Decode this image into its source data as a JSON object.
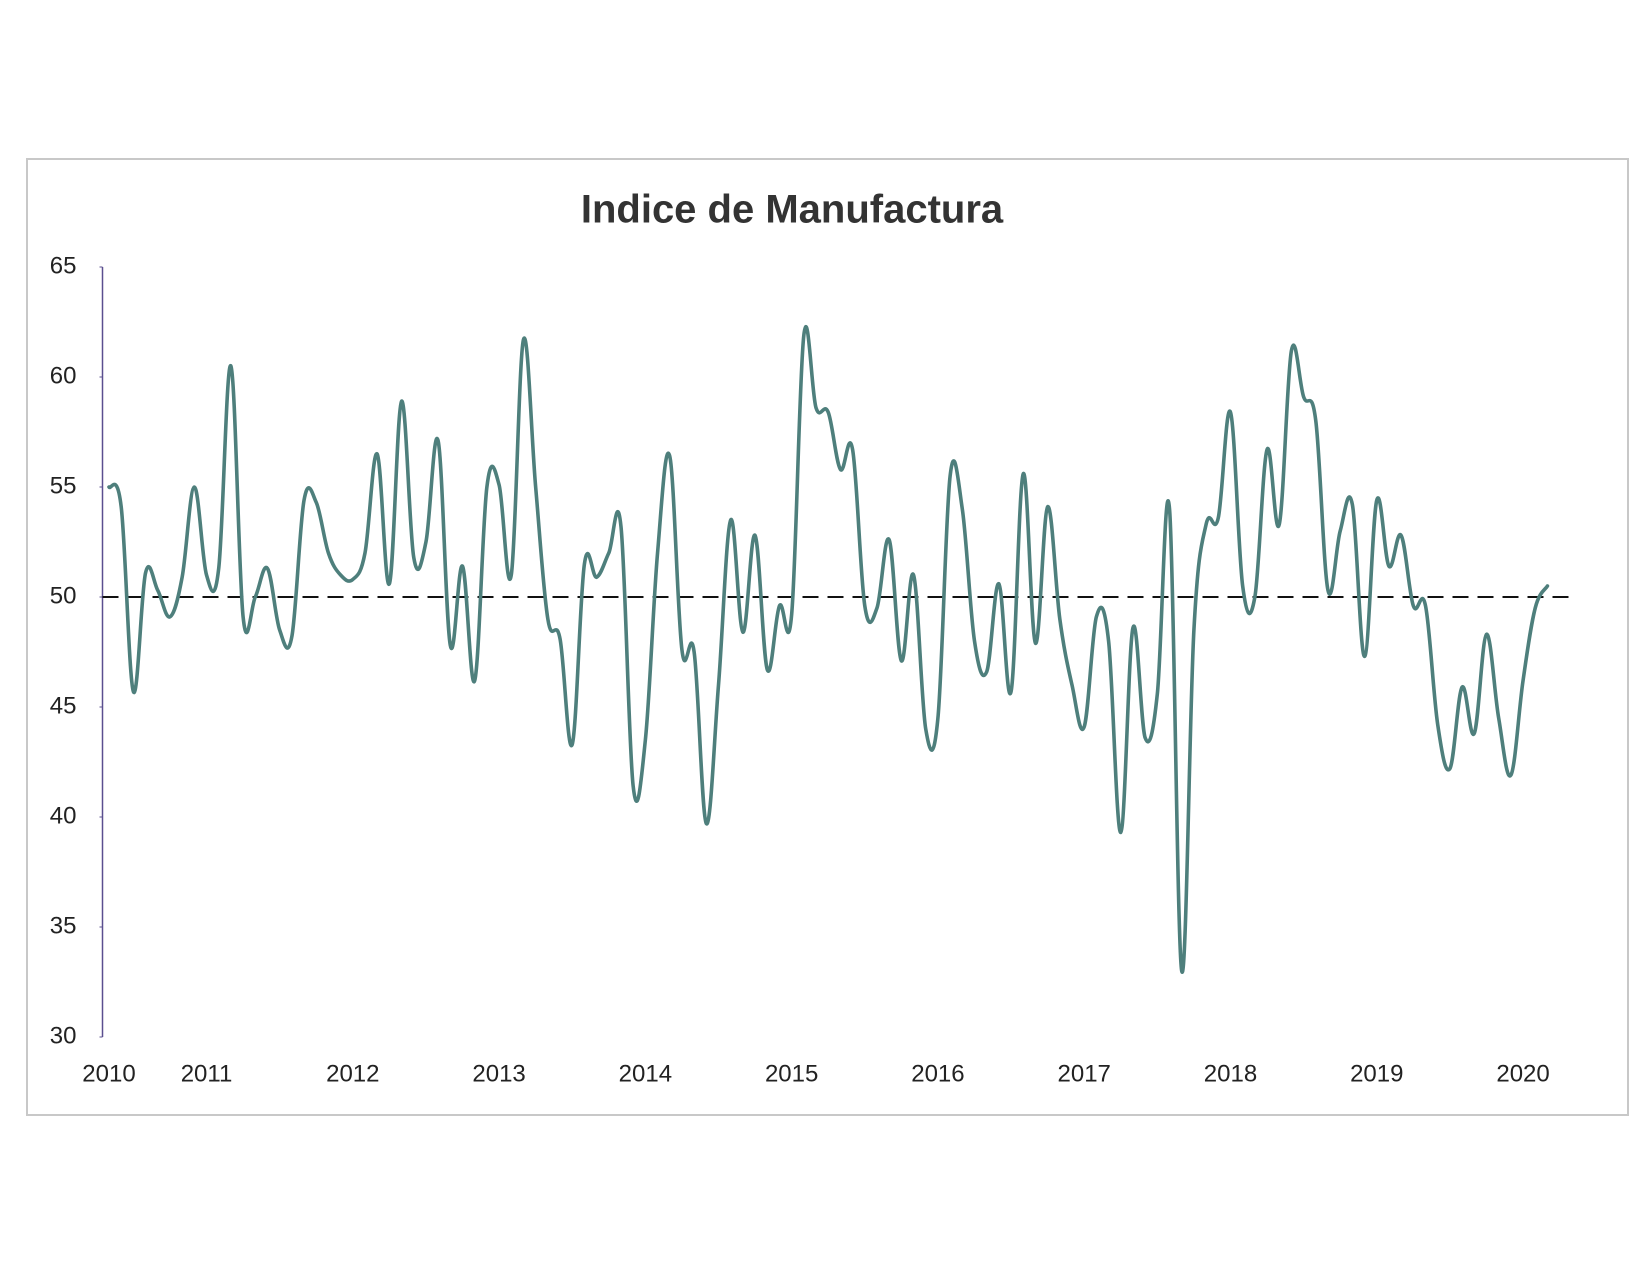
{
  "chart_data": {
    "type": "line",
    "title": "Indice de Manufactura",
    "categories": [
      "2010",
      null,
      null,
      null,
      null,
      null,
      null,
      null,
      "2011",
      null,
      null,
      null,
      null,
      null,
      null,
      null,
      null,
      null,
      null,
      null,
      "2012",
      null,
      null,
      null,
      null,
      null,
      null,
      null,
      null,
      null,
      null,
      null,
      "2013",
      null,
      null,
      null,
      null,
      null,
      null,
      null,
      null,
      null,
      null,
      null,
      "2014",
      null,
      null,
      null,
      null,
      null,
      null,
      null,
      null,
      null,
      null,
      null,
      "2015",
      null,
      null,
      null,
      null,
      null,
      null,
      null,
      null,
      null,
      null,
      null,
      "2016",
      null,
      null,
      null,
      null,
      null,
      null,
      null,
      null,
      null,
      null,
      null,
      "2017",
      null,
      null,
      null,
      null,
      null,
      null,
      null,
      null,
      null,
      null,
      null,
      "2018",
      null,
      null,
      null,
      null,
      null,
      null,
      null,
      null,
      null,
      null,
      null,
      "2019",
      null,
      null,
      null,
      null,
      null,
      null,
      null,
      null,
      null,
      null,
      null,
      "2020",
      null,
      null
    ],
    "series": [
      {
        "name": "Indice de Manufactura",
        "color": "#4e7f7c",
        "values": [
          55.0,
          54.1,
          45.7,
          51.1,
          50.3,
          49.1,
          50.9,
          55.0,
          51.0,
          51.3,
          60.5,
          49.1,
          50.0,
          51.3,
          48.5,
          48.2,
          54.4,
          54.3,
          52.0,
          51.0,
          50.8,
          52.0,
          56.5,
          50.6,
          58.9,
          51.8,
          52.5,
          57.1,
          47.8,
          51.4,
          46.2,
          55.0,
          55.1,
          51.0,
          61.7,
          55.0,
          49.0,
          48.1,
          43.3,
          51.5,
          50.9,
          52.0,
          53.2,
          41.4,
          43.5,
          52.0,
          56.4,
          47.6,
          47.5,
          39.7,
          46.0,
          53.5,
          48.4,
          52.8,
          46.7,
          49.6,
          49.2,
          61.9,
          58.6,
          58.4,
          55.8,
          56.7,
          49.6,
          49.5,
          52.6,
          47.1,
          51.0,
          44.0,
          44.5,
          55.5,
          54.0,
          48.0,
          46.6,
          50.6,
          45.7,
          55.6,
          47.9,
          54.1,
          49.0,
          46.0,
          44.1,
          49.1,
          48.0,
          39.3,
          48.6,
          43.6,
          45.6,
          54.0,
          33.0,
          48.5,
          53.3,
          53.6,
          58.4,
          50.5,
          50.0,
          56.7,
          53.3,
          61.2,
          59.1,
          58.0,
          50.3,
          53.0,
          54.2,
          47.3,
          54.4,
          51.4,
          52.8,
          49.6,
          49.6,
          44.2,
          42.2,
          45.9,
          43.8,
          48.3,
          44.5,
          41.9,
          46.2,
          49.5,
          50.5
        ]
      }
    ],
    "ylim": [
      30,
      65
    ],
    "yticks": [
      30,
      35,
      40,
      45,
      50,
      55,
      60,
      65
    ],
    "reference_line": 50,
    "grid": false
  }
}
